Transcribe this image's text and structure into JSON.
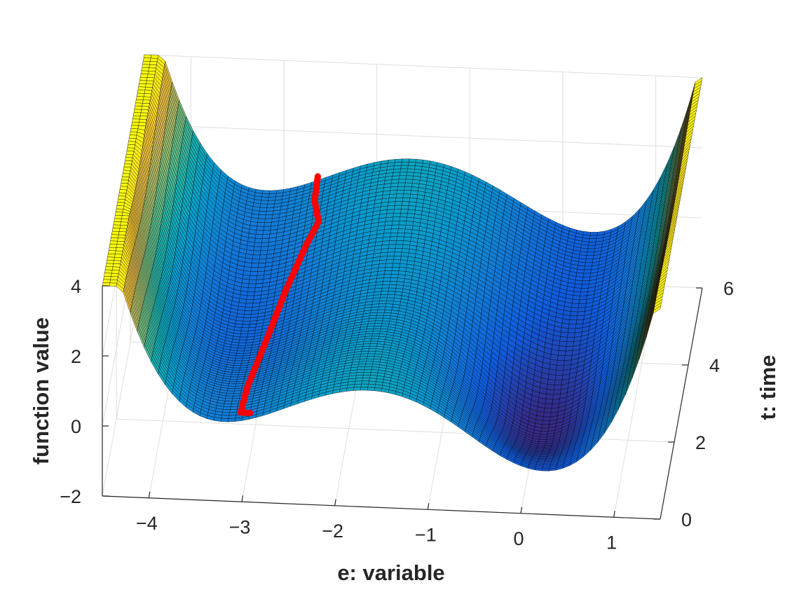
{
  "chart_data": {
    "type": "surface",
    "title": "",
    "xlabel": "e: variable",
    "ylabel": "t: time",
    "zlabel": "function value",
    "x_ticks": [
      "-4",
      "-3",
      "-2",
      "-1",
      "0",
      "1"
    ],
    "y_ticks": [
      "0",
      "2",
      "4",
      "6"
    ],
    "z_ticks": [
      "-2",
      "0",
      "2",
      "4"
    ],
    "xlim": [
      -4.5,
      1.5
    ],
    "ylim": [
      0,
      6
    ],
    "zlim": [
      -2,
      4
    ],
    "grid": true,
    "colormap": "parula",
    "surface_clipped_above": 4,
    "trajectory": {
      "color": "#ff0000",
      "points": [
        {
          "e": -2.98,
          "t": 0.9,
          "z": -0.45
        },
        {
          "e": -3.08,
          "t": 0.9,
          "z": -0.45
        },
        {
          "e": -3.05,
          "t": 1.5,
          "z": -0.35
        },
        {
          "e": -2.92,
          "t": 2.5,
          "z": -0.1
        },
        {
          "e": -2.8,
          "t": 3.5,
          "z": 0.15
        },
        {
          "e": -2.65,
          "t": 4.5,
          "z": 0.4
        },
        {
          "e": -2.55,
          "t": 5.0,
          "z": 0.55
        },
        {
          "e": -2.62,
          "t": 5.35,
          "z": 0.75
        },
        {
          "e": -2.62,
          "t": 5.8,
          "z": 0.95
        }
      ]
    }
  },
  "colors": {
    "trajectory": "#ff0000",
    "grid": "#dedede",
    "axis": "#262626",
    "mesh": "#000000"
  }
}
